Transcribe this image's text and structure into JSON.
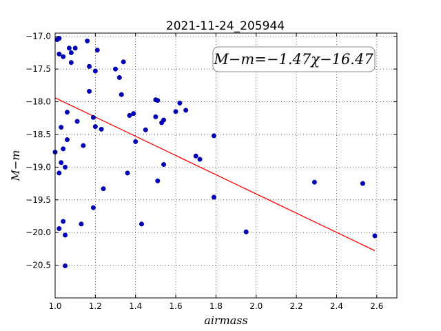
{
  "chart_data": {
    "type": "scatter",
    "title": "2021-11-24_205944",
    "xlabel": "airmass",
    "ylabel": "M−m",
    "xlim": [
      1.0,
      2.7
    ],
    "ylim": [
      -21.0,
      -16.95
    ],
    "y_inverted": true,
    "xticks": [
      "1.0",
      "1.2",
      "1.4",
      "1.6",
      "1.8",
      "2.0",
      "2.2",
      "2.4",
      "2.6"
    ],
    "yticks": [
      "−17.0",
      "−17.5",
      "−18.0",
      "−18.5",
      "−19.0",
      "−19.5",
      "−20.0",
      "−20.5"
    ],
    "grid": true,
    "annotation": "M−m=−1.47χ−16.47",
    "point_color": "#0000c0",
    "line_color": "#ff0000",
    "fit_line": {
      "slope": -1.47,
      "intercept": -16.47,
      "x": [
        1.0,
        2.59
      ]
    },
    "x": [
      1.01,
      1.02,
      1.02,
      1.04,
      1.07,
      1.08,
      1.1,
      1.16,
      1.08,
      1.17,
      1.2,
      1.21,
      1.17,
      1.3,
      1.32,
      1.34,
      1.33,
      1.06,
      1.11,
      1.03,
      1.19,
      1.2,
      1.23,
      1.06,
      1.14,
      1.04,
      1.0,
      1.03,
      1.05,
      1.02,
      1.24,
      1.19,
      1.04,
      1.13,
      1.02,
      1.05,
      1.05,
      1.37,
      1.39,
      1.45,
      1.4,
      1.5,
      1.51,
      1.5,
      1.54,
      1.53,
      1.6,
      1.62,
      1.65,
      1.36,
      1.54,
      1.51,
      1.43,
      1.7,
      1.72,
      1.79,
      1.79,
      1.95,
      2.29,
      2.53,
      2.59
    ],
    "y": [
      -17.05,
      -17.27,
      -17.03,
      -17.31,
      -17.18,
      -17.25,
      -17.18,
      -17.07,
      -17.4,
      -17.46,
      -17.53,
      -17.21,
      -17.84,
      -17.5,
      -17.63,
      -17.39,
      -17.89,
      -18.16,
      -18.3,
      -18.39,
      -18.24,
      -18.38,
      -18.42,
      -18.58,
      -18.67,
      -18.72,
      -18.77,
      -18.93,
      -19.0,
      -19.09,
      -19.33,
      -19.62,
      -19.83,
      -19.87,
      -19.94,
      -20.04,
      -20.51,
      -18.21,
      -18.18,
      -18.43,
      -18.61,
      -17.97,
      -17.98,
      -18.23,
      -18.28,
      -18.32,
      -18.15,
      -18.02,
      -18.13,
      -19.09,
      -18.96,
      -19.21,
      -19.87,
      -18.83,
      -18.88,
      -18.52,
      -19.46,
      -19.99,
      -19.23,
      -19.25,
      -20.05
    ]
  }
}
